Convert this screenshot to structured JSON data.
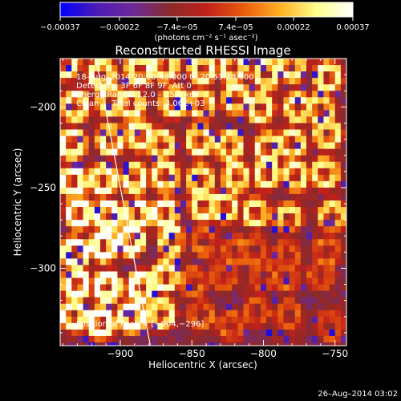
{
  "chart_data": {
    "type": "heatmap",
    "title": "Reconstructed RHESSI Image",
    "xlabel": "Heliocentric X (arcsec)",
    "ylabel": "Heliocentric Y (arcsec)",
    "xlim": [
      -942,
      -742
    ],
    "ylim": [
      -348,
      -170
    ],
    "x_ticks": [
      -900,
      -850,
      -800,
      -750
    ],
    "y_ticks": [
      -200,
      -250,
      -300
    ],
    "x_tick_labels": [
      "−900",
      "−850",
      "−800",
      "−750"
    ],
    "y_tick_labels": [
      "−200",
      "−250",
      "−300"
    ],
    "grid": false,
    "colorbar": {
      "ticks": [
        -0.00037,
        -0.00022,
        -7.4e-05,
        7.4e-05,
        0.00022,
        0.00037
      ],
      "tick_labels": [
        "−0.00037",
        "−0.00022",
        "−7.4e−05",
        "7.4e−05",
        "0.00022",
        "0.00037"
      ],
      "range": [
        -0.00037,
        0.00037
      ],
      "colors": [
        "#0000ff",
        "#4a1bb4",
        "#6e2a99",
        "#8a2a2a",
        "#c0201a",
        "#e85a0c",
        "#ffae22",
        "#ffff8a",
        "#ffffff"
      ],
      "unit_label": "(photons cm⁻² s⁻¹ asec⁻²)"
    },
    "info": [
      "18–Aug–2014 20:50:48.000 to 20:53:28.000",
      "Detectors: 3F 6F 8F 9F, Att 0",
      "Energy Range: 12.0 – 25.0 keV",
      "Clean     Total counts: 3.06E+03"
    ],
    "peak_label": "Position of Peak = [−904,−296]",
    "peak": [
      -904,
      -296
    ],
    "limb_line": [
      [
        -917,
        -170
      ],
      [
        -879,
        -348
      ]
    ]
  },
  "footer": {
    "date": "26–Aug–2014 03:02"
  }
}
